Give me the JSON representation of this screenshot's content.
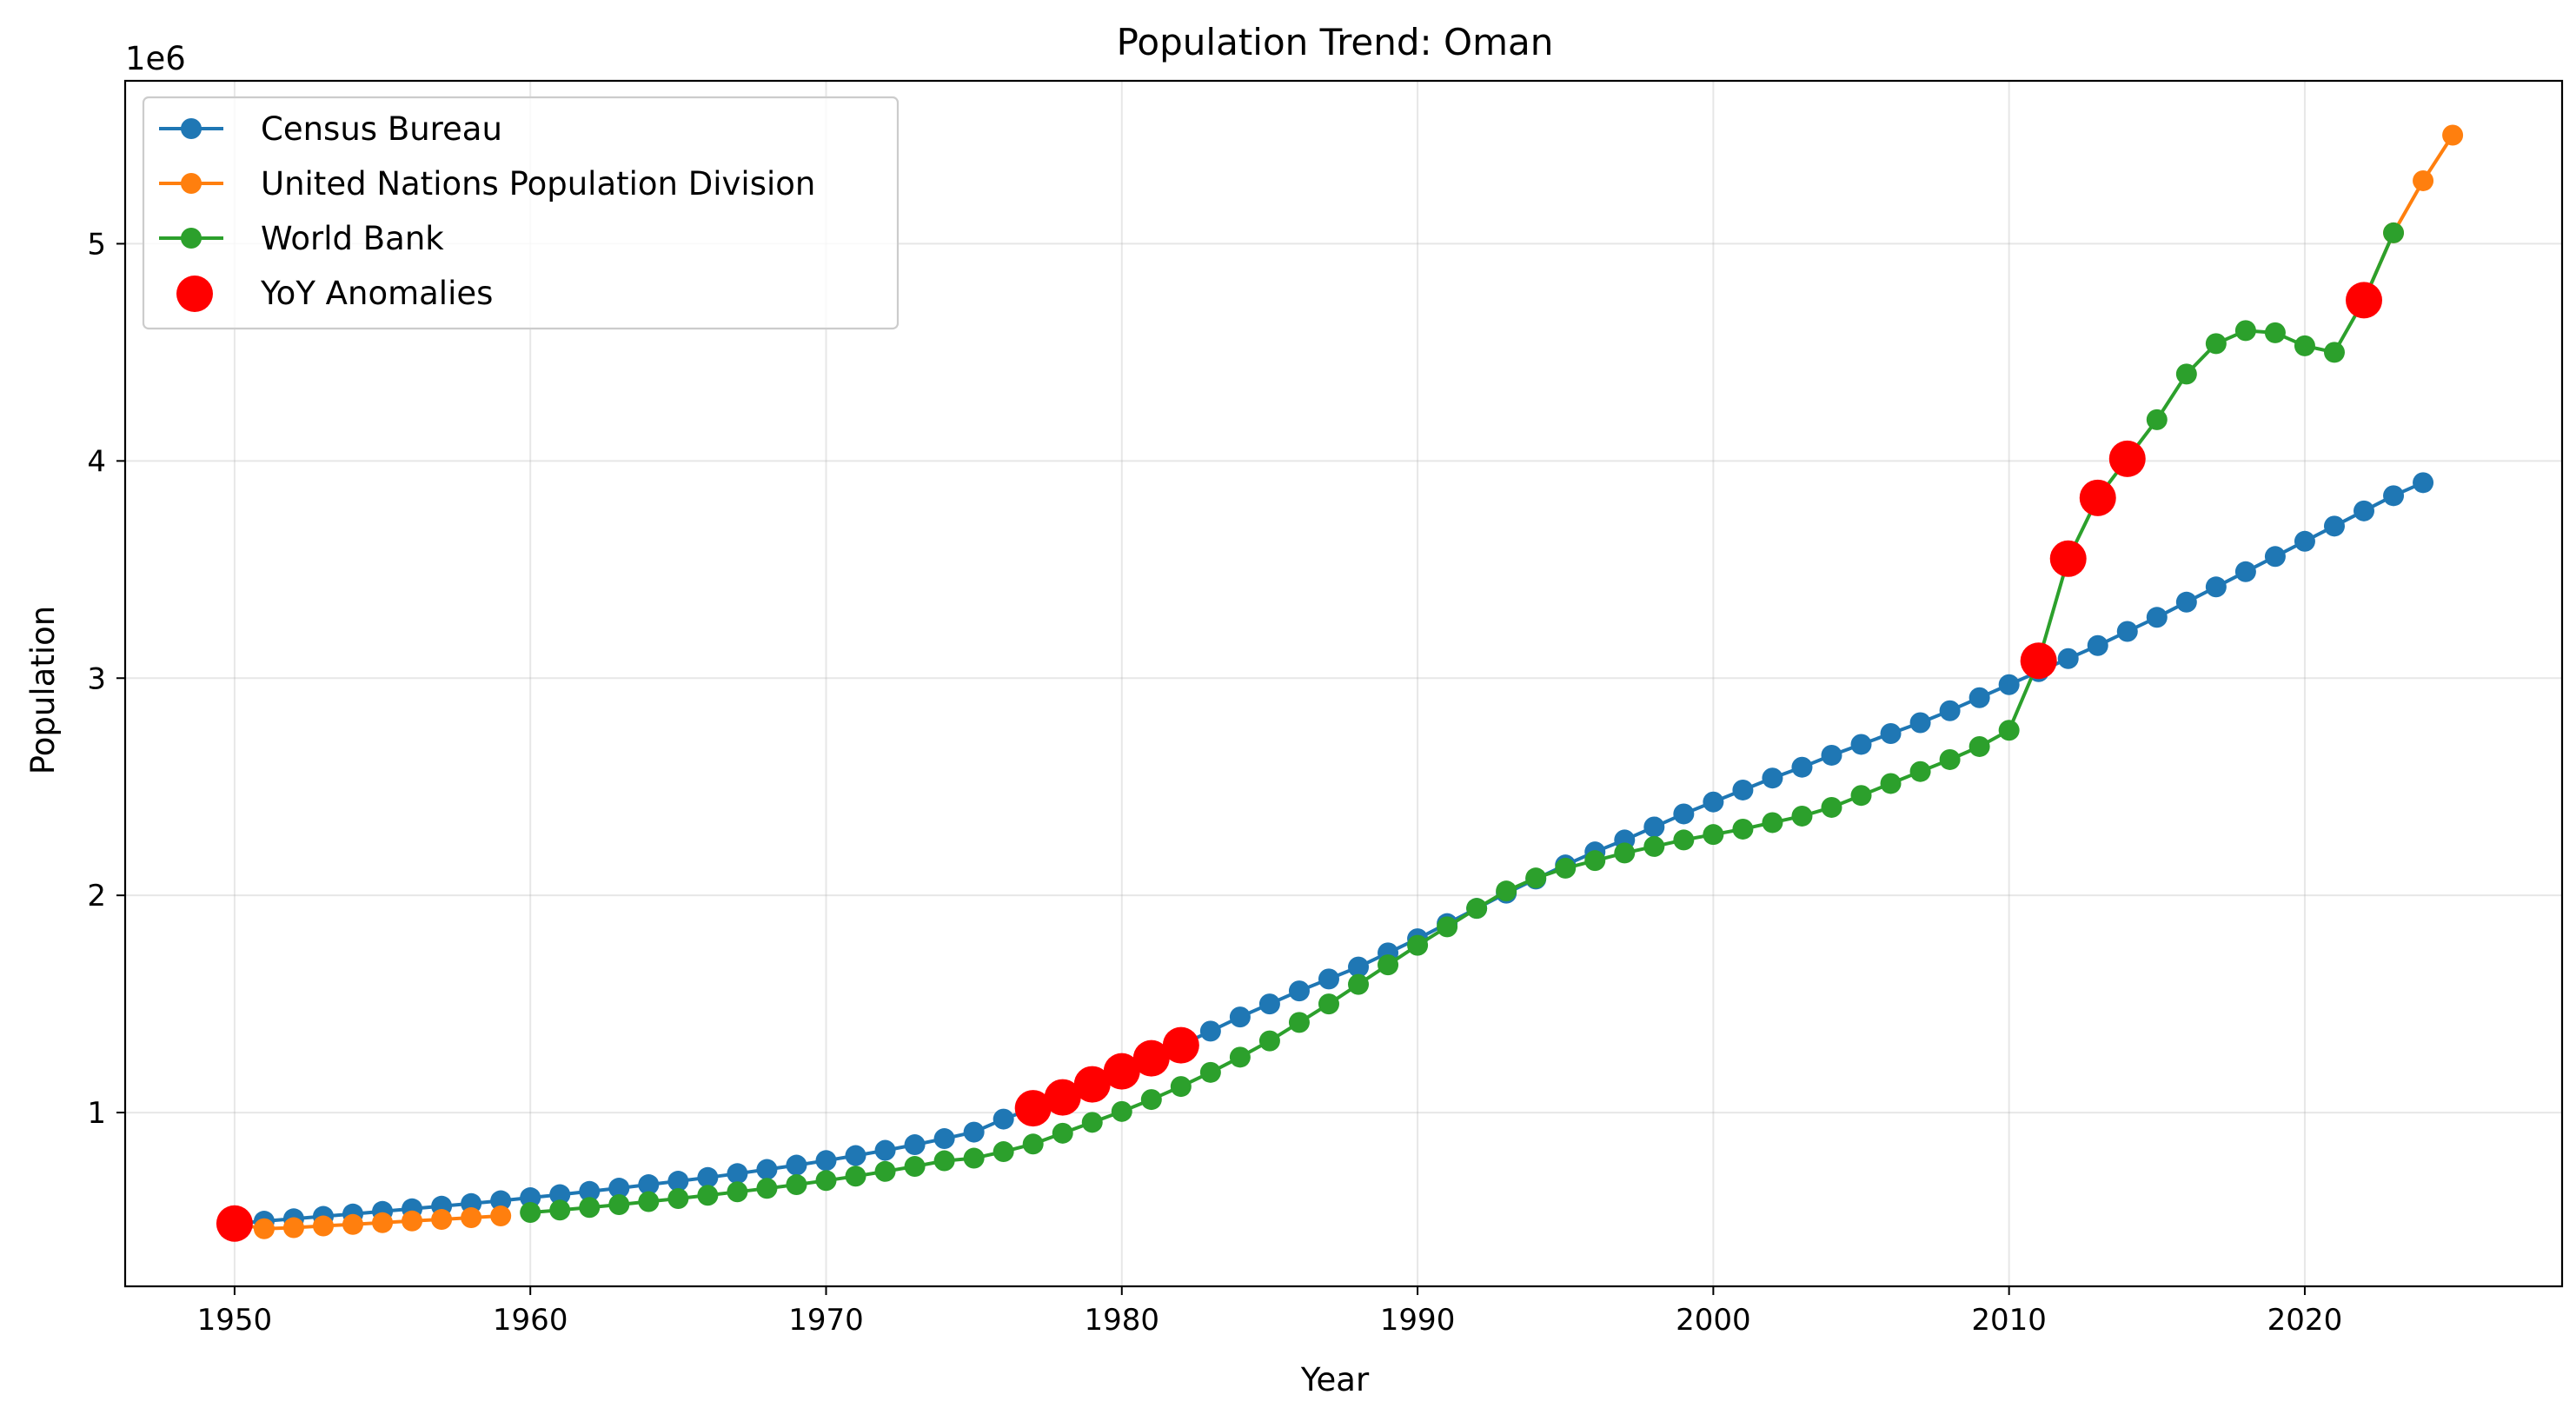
{
  "chart_data": {
    "type": "line",
    "title": "Population Trend: Oman",
    "xlabel": "Year",
    "ylabel": "Population",
    "y_offset_label": "1e6",
    "xlim": [
      1946.3,
      2028.7
    ],
    "ylim": [
      200000,
      5750000
    ],
    "x_ticks": [
      1950,
      1960,
      1970,
      1980,
      1990,
      2000,
      2010,
      2020
    ],
    "x_tick_labels": [
      "1950",
      "1960",
      "1970",
      "1980",
      "1990",
      "2000",
      "2010",
      "2020"
    ],
    "y_ticks": [
      1000000,
      2000000,
      3000000,
      4000000,
      5000000
    ],
    "y_tick_labels": [
      "1",
      "2",
      "3",
      "4",
      "5"
    ],
    "grid": true,
    "legend_position": "top-left",
    "series": [
      {
        "name": "Census Bureau",
        "color": "#1f77b4",
        "x": [
          1950,
          1951,
          1952,
          1953,
          1954,
          1955,
          1956,
          1957,
          1958,
          1959,
          1960,
          1961,
          1962,
          1963,
          1964,
          1965,
          1966,
          1967,
          1968,
          1969,
          1970,
          1971,
          1972,
          1973,
          1974,
          1975,
          1976,
          1977,
          1978,
          1979,
          1980,
          1981,
          1982,
          1983,
          1984,
          1985,
          1986,
          1987,
          1988,
          1989,
          1990,
          1991,
          1992,
          1993,
          1994,
          1995,
          1996,
          1997,
          1998,
          1999,
          2000,
          2001,
          2002,
          2003,
          2004,
          2005,
          2006,
          2007,
          2008,
          2009,
          2010,
          2011,
          2012,
          2013,
          2014,
          2015,
          2016,
          2017,
          2018,
          2019,
          2020,
          2021,
          2022,
          2023,
          2024
        ],
        "values": [
          489000,
          500000,
          511000,
          522000,
          533000,
          545000,
          557000,
          569000,
          581000,
          594000,
          608000,
          622000,
          637000,
          652000,
          668000,
          684000,
          701000,
          719000,
          738000,
          758000,
          779000,
          802000,
          826000,
          852000,
          880000,
          910000,
          970000,
          1020000,
          1070000,
          1130000,
          1190000,
          1250000,
          1310000,
          1375000,
          1440000,
          1500000,
          1560000,
          1615000,
          1670000,
          1735000,
          1800000,
          1870000,
          1940000,
          2010000,
          2075000,
          2140000,
          2200000,
          2255000,
          2315000,
          2375000,
          2430000,
          2485000,
          2540000,
          2590000,
          2645000,
          2695000,
          2745000,
          2795000,
          2850000,
          2910000,
          2970000,
          3030000,
          3090000,
          3150000,
          3215000,
          3280000,
          3350000,
          3420000,
          3490000,
          3560000,
          3630000,
          3700000,
          3770000,
          3840000,
          3900000
        ]
      },
      {
        "name": "United Nations Population Division",
        "color": "#ff7f0e",
        "x": [
          1950,
          1951,
          1952,
          1953,
          1954,
          1955,
          1956,
          1957,
          1958,
          1959,
          2022,
          2023,
          2024,
          2025
        ],
        "values": [
          489000,
          465000,
          470000,
          478000,
          485000,
          493000,
          501000,
          508000,
          516000,
          524000,
          4740000,
          5050000,
          5290000,
          5500000
        ],
        "segments": [
          [
            0,
            9
          ],
          [
            10,
            13
          ]
        ]
      },
      {
        "name": "World Bank",
        "color": "#2ca02c",
        "x": [
          1960,
          1961,
          1962,
          1963,
          1964,
          1965,
          1966,
          1967,
          1968,
          1969,
          1970,
          1971,
          1972,
          1973,
          1974,
          1975,
          1976,
          1977,
          1978,
          1979,
          1980,
          1981,
          1982,
          1983,
          1984,
          1985,
          1986,
          1987,
          1988,
          1989,
          1990,
          1991,
          1992,
          1993,
          1994,
          1995,
          1996,
          1997,
          1998,
          1999,
          2000,
          2001,
          2002,
          2003,
          2004,
          2005,
          2006,
          2007,
          2008,
          2009,
          2010,
          2011,
          2012,
          2013,
          2014,
          2015,
          2016,
          2017,
          2018,
          2019,
          2020,
          2021,
          2022,
          2023
        ],
        "values": [
          540000,
          551000,
          563000,
          576000,
          590000,
          604000,
          619000,
          635000,
          651000,
          668000,
          687000,
          707000,
          729000,
          752000,
          778000,
          790000,
          820000,
          855000,
          905000,
          955000,
          1005000,
          1060000,
          1120000,
          1185000,
          1255000,
          1330000,
          1415000,
          1500000,
          1590000,
          1680000,
          1770000,
          1855000,
          1940000,
          2020000,
          2080000,
          2125000,
          2160000,
          2195000,
          2225000,
          2255000,
          2280000,
          2305000,
          2335000,
          2365000,
          2405000,
          2460000,
          2515000,
          2570000,
          2625000,
          2685000,
          2760000,
          3080000,
          3550000,
          3830000,
          4010000,
          4190000,
          4400000,
          4540000,
          4600000,
          4590000,
          4530000,
          4500000,
          4740000,
          5050000
        ]
      }
    ],
    "anomalies": {
      "name": "YoY Anomalies",
      "color": "#ff0000",
      "x": [
        1950,
        1977,
        1978,
        1979,
        1980,
        1981,
        1982,
        2011,
        2012,
        2013,
        2014,
        2022
      ],
      "values": [
        489000,
        1020000,
        1070000,
        1130000,
        1190000,
        1250000,
        1310000,
        3080000,
        3550000,
        3830000,
        4010000,
        4740000
      ]
    }
  }
}
